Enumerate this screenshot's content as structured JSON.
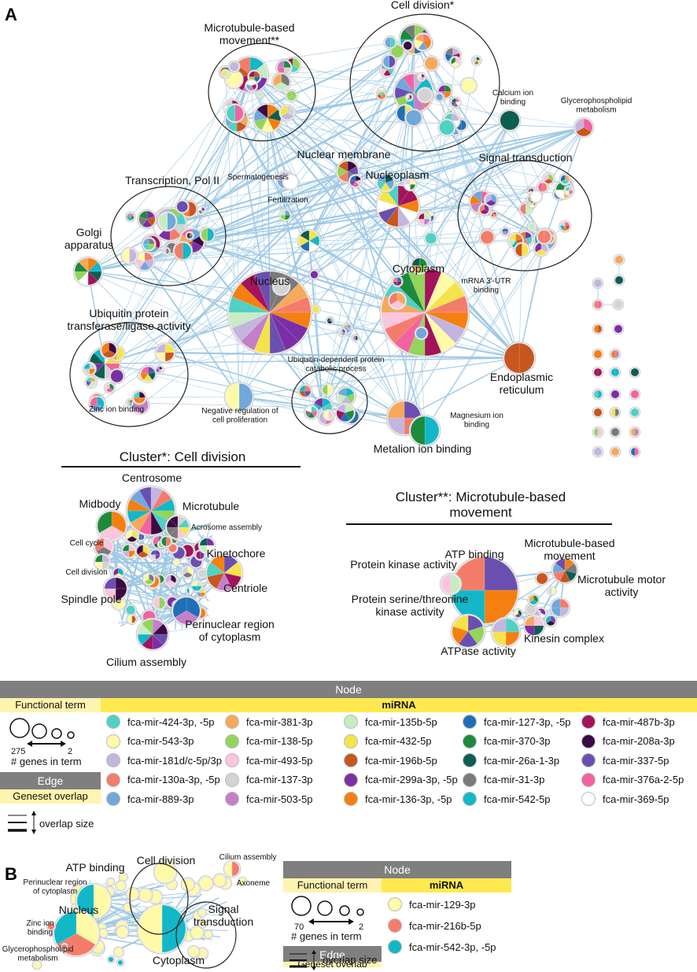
{
  "panel_labels": {
    "a": "A",
    "b": "B"
  },
  "panel_a": {
    "cluster_labels": {
      "microtubule": "Microtubule-based movement**",
      "cell_division": "Cell division*",
      "calcium": "Calcium ion binding",
      "glycero": "Glycerophospholipid metabolism",
      "nuclear_membrane": "Nuclear membrane",
      "signal_transduction": "Signal transduction",
      "spermatogenesis": "Spermatogenesis",
      "nucleoplasm": "Nucleoplasm",
      "transcription": "Transcription, Pol II",
      "fertilization": "Fertilization",
      "golgi": "Golgi apparatus",
      "nucleus": "Nucleus",
      "cytoplasm": "Cytoplasm",
      "mrna_utr": "mRNA 3'-UTR binding",
      "ubiquitin_ligase": "Ubiquitin protein transferase/ligase activity",
      "ubiquitin_dependent": "Ubiquitin-dependent protein catabolic process",
      "zinc": "Zinc ion binding",
      "neg_reg": "Negative regulation of cell proliferation",
      "er": "Endoplasmic reticulum",
      "magnesium": "Magnesium ion binding",
      "metalion": "Metalion ion binding"
    },
    "cluster1": {
      "title": "Cluster*: Cell division",
      "labels": {
        "centrosome": "Centrosome",
        "midbody": "Midbody",
        "microtubule": "Microtubule",
        "acrosome": "Acrosome assembly",
        "cell_cycle": "Cell cycle",
        "kinetochore": "Kinetochore",
        "cell_division": "Cell division",
        "centriole": "Centriole",
        "spindle": "Spindle pole",
        "perinuclear": "Perinuclear region of cytoplasm",
        "cilium": "Cilium assembly"
      }
    },
    "cluster2": {
      "title": "Cluster**: Microtubule-based movement",
      "labels": {
        "atp": "ATP binding",
        "mt_movement": "Microtubule-based movement",
        "protein_kinase": "Protein kinase activity",
        "mt_motor": "Microtubule motor activity",
        "ser_thr": "Protein serine/threonine kinase activity",
        "kinesin": "Kinesin complex",
        "atpase": "ATPase activity"
      }
    },
    "legend": {
      "node_header": "Node",
      "functional_term": "Functional term",
      "mirna_header": "miRNA",
      "size_max": "275",
      "size_min": "2",
      "size_caption": "# genes in term",
      "edge_header": "Edge",
      "edge_label": "Geneset overlap",
      "overlap_label": "overlap size",
      "mirnas": [
        {
          "name": "fca-mir-424-3p, -5p",
          "color": "#4fd1c5"
        },
        {
          "name": "fca-mir-543-3p",
          "color": "#fffaa8"
        },
        {
          "name": "fca-mir-181d/c-5p/3p",
          "color": "#c4b5e0"
        },
        {
          "name": "fca-mir-130a-3p, -5p",
          "color": "#f47c6b"
        },
        {
          "name": "fca-mir-889-3p",
          "color": "#6fa8dc"
        },
        {
          "name": "fca-mir-381-3p",
          "color": "#f6a95a"
        },
        {
          "name": "fca-mir-138-5p",
          "color": "#93d45a"
        },
        {
          "name": "fca-mir-493-5p",
          "color": "#f9c6dd"
        },
        {
          "name": "fca-mir-137-3p",
          "color": "#d3d3d3"
        },
        {
          "name": "fca-mir-503-5p",
          "color": "#c57fc8"
        },
        {
          "name": "fca-mir-135b-5p",
          "color": "#c7ecc4"
        },
        {
          "name": "fca-mir-432-5p",
          "color": "#f4e44a"
        },
        {
          "name": "fca-mir-196b-5p",
          "color": "#c8561f"
        },
        {
          "name": "fca-mir-299a-3p, -5p",
          "color": "#7b2fa6"
        },
        {
          "name": "fca-mir-136-3p, -5p",
          "color": "#f57f0f"
        },
        {
          "name": "fca-mir-127-3p, -5p",
          "color": "#1f6fb8"
        },
        {
          "name": "fca-mir-370-3p",
          "color": "#1e8a3c"
        },
        {
          "name": "fca-mir-26a-1-3p",
          "color": "#0d5e52"
        },
        {
          "name": "fca-mir-31-3p",
          "color": "#7a7a7a"
        },
        {
          "name": "fca-mir-542-5p",
          "color": "#12b8c8"
        },
        {
          "name": "fca-mir-487b-3p",
          "color": "#a3135b"
        },
        {
          "name": "fca-mir-208a-3p",
          "color": "#3b0a45"
        },
        {
          "name": "fca-mir-337-5p",
          "color": "#6a4fb0"
        },
        {
          "name": "fca-mir-376a-2-5p",
          "color": "#f2639f"
        },
        {
          "name": "fca-mir-369-5p",
          "color": "#ffffff"
        }
      ]
    }
  },
  "panel_b": {
    "labels": {
      "atp": "ATP binding",
      "cell_division": "Cell division",
      "cilium": "Cilium assembly",
      "perinuclear": "Perinuclear region of cytoplasm",
      "signal": "Signal transduction",
      "axoneme": "Axoneme",
      "zinc": "Zinc ion binding",
      "nucleus": "Nucleus",
      "cytoplasm": "Cytoplasm",
      "glycero": "Glycerophospholipid metabolism"
    },
    "legend": {
      "node_header": "Node",
      "functional_term": "Functional term",
      "mirna_header": "miRNA",
      "size_max": "70",
      "size_min": "2",
      "size_caption": "# genes in term",
      "edge_header": "Edge",
      "edge_label": "Geneset overlap",
      "overlap_label": "overlap size",
      "mirnas": [
        {
          "name": "fca-mir-129-3p",
          "color": "#fffaa8"
        },
        {
          "name": "fca-mir-216b-5p",
          "color": "#f47c6b"
        },
        {
          "name": "fca-mir-542-3p, -5p",
          "color": "#12b8c8"
        }
      ]
    }
  }
}
